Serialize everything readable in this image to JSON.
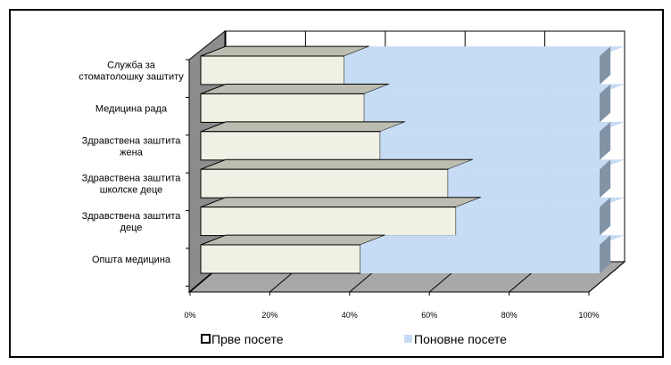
{
  "chart_data": {
    "type": "bar",
    "orientation": "horizontal",
    "stacked": "percent",
    "three_d": true,
    "categories": [
      [
        "Служба за",
        "стоматолошку заштиту"
      ],
      [
        "Медицина рада"
      ],
      [
        "Здравствена заштита",
        "жена"
      ],
      [
        "Здравствена заштита",
        "школске деце"
      ],
      [
        "Здравствена заштита",
        "деце"
      ],
      [
        "Општа медицина"
      ]
    ],
    "series": [
      {
        "name": "Прве посете",
        "values": [
          36,
          41,
          45,
          62,
          64,
          40
        ],
        "color": "#f0f0e4",
        "top": "#bcbcb0",
        "side": "#a09f93"
      },
      {
        "name": "Поновне посете",
        "values": [
          64,
          59,
          55,
          38,
          36,
          60
        ],
        "color": "#c6dcf4",
        "top": "#c6dcf4",
        "side": "#8393a6"
      }
    ],
    "xticks": [
      "0%",
      "20%",
      "40%",
      "60%",
      "80%",
      "100%"
    ],
    "xlim": [
      0,
      100
    ],
    "grid": true,
    "legend_position": "bottom"
  }
}
